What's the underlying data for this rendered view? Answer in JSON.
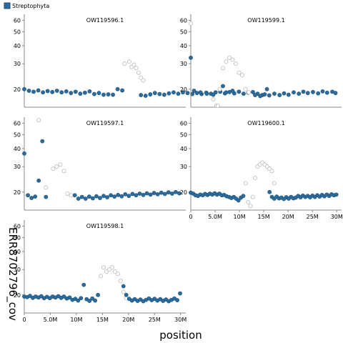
{
  "chart_data": {
    "type": "scatter",
    "title": "",
    "xlabel": "position",
    "ylabel": "ERR8702796_cov",
    "y_scale": "log",
    "grid": false,
    "legend": {
      "position": "top-left",
      "entries": [
        {
          "name": "Streptophyta",
          "color": "#2b6c9e"
        }
      ]
    },
    "colors": {
      "included": "#2b6c9e",
      "included_stroke": "#1d4f77",
      "excluded_stroke": "#bbbbbb"
    },
    "y_ticks": [
      20,
      30,
      40,
      50,
      60
    ],
    "y_tick_labels": [
      "20",
      "30",
      "40",
      "50",
      "60"
    ],
    "ylim": [
      15,
      66
    ],
    "x_ticks": [
      0,
      5000000,
      10000000,
      15000000,
      20000000,
      25000000,
      30000000
    ],
    "x_tick_labels": [
      "0",
      "5.0M",
      "10M",
      "15M",
      "20M",
      "25M",
      "30M"
    ],
    "xlim": [
      0,
      31000000
    ],
    "panels": [
      {
        "name": "OW119596.1",
        "length": 34000000,
        "included": [
          [
            0,
            20
          ],
          [
            1000000,
            19.5
          ],
          [
            2000000,
            19.2
          ],
          [
            3000000,
            19.6
          ],
          [
            4000000,
            19
          ],
          [
            5000000,
            19.4
          ],
          [
            6000000,
            19.1
          ],
          [
            7000000,
            19.5
          ],
          [
            8000000,
            19
          ],
          [
            9000000,
            19.3
          ],
          [
            10000000,
            18.8
          ],
          [
            11000000,
            19.2
          ],
          [
            12000000,
            18.6
          ],
          [
            13000000,
            18.9
          ],
          [
            14000000,
            19.3
          ],
          [
            15000000,
            18.5
          ],
          [
            16000000,
            18.8
          ],
          [
            17000000,
            18.3
          ],
          [
            18000000,
            18.4
          ],
          [
            19000000,
            18.3
          ],
          [
            20000000,
            20
          ],
          [
            21000000,
            19.6
          ],
          [
            25000000,
            18.2
          ],
          [
            26000000,
            18
          ],
          [
            27000000,
            18.4
          ],
          [
            28000000,
            18.8
          ],
          [
            29000000,
            18.5
          ],
          [
            30000000,
            18.3
          ],
          [
            31000000,
            18.7
          ],
          [
            32000000,
            19
          ],
          [
            33000000,
            18.6
          ],
          [
            34000000,
            19
          ],
          [
            35000000,
            18.8
          ],
          [
            36000000,
            18.5
          ],
          [
            37000000,
            18.8
          ],
          [
            38000000,
            18.5
          ],
          [
            39000000,
            18.9
          ],
          [
            40000000,
            18.6
          ],
          [
            41000000,
            19
          ],
          [
            42000000,
            19.2
          ],
          [
            43000000,
            18.7
          ],
          [
            44000000,
            19.1
          ],
          [
            45000000,
            18.7
          ],
          [
            46000000,
            19.2
          ],
          [
            47000000,
            18.6
          ],
          [
            48000000,
            18.9
          ],
          [
            49000000,
            19.1
          ],
          [
            50000000,
            18.6
          ],
          [
            51000000,
            18.2
          ],
          [
            52000000,
            20
          ]
        ],
        "excluded": [
          [
            21500000,
            30
          ],
          [
            22500000,
            31
          ],
          [
            23000000,
            28.5
          ],
          [
            23500000,
            29.5
          ],
          [
            24000000,
            28
          ],
          [
            24500000,
            26
          ],
          [
            25000000,
            24
          ],
          [
            25500000,
            23
          ]
        ]
      },
      {
        "name": "OW119599.1",
        "length": 23000000,
        "included": [
          [
            0,
            33
          ],
          [
            500000,
            19.5
          ],
          [
            1500000,
            19
          ],
          [
            2500000,
            18.6
          ],
          [
            3500000,
            18.3
          ],
          [
            5000000,
            21
          ],
          [
            5500000,
            19
          ],
          [
            6500000,
            19.5
          ],
          [
            10000000,
            18.2
          ],
          [
            10800000,
            17.9
          ],
          [
            11500000,
            18.4
          ],
          [
            12200000,
            18.1
          ],
          [
            13000000,
            18.6
          ],
          [
            13800000,
            18.2
          ],
          [
            14500000,
            18.7
          ],
          [
            15200000,
            18.3
          ],
          [
            16000000,
            19
          ],
          [
            16800000,
            18.6
          ],
          [
            17500000,
            19.2
          ],
          [
            18200000,
            18.8
          ],
          [
            19000000,
            19.1
          ],
          [
            19800000,
            18.7
          ],
          [
            20500000,
            19.3
          ],
          [
            21200000,
            18.9
          ],
          [
            22000000,
            19.2
          ],
          [
            22500000,
            18.8
          ]
        ],
        "excluded": [
          [
            0,
            57
          ],
          [
            3500000,
            17
          ],
          [
            4000000,
            15.2
          ],
          [
            4200000,
            14.5
          ],
          [
            4500000,
            20
          ],
          [
            5000000,
            28
          ],
          [
            5500000,
            31
          ],
          [
            6000000,
            33
          ],
          [
            6500000,
            32
          ],
          [
            7000000,
            30
          ],
          [
            7500000,
            26
          ],
          [
            8000000,
            25
          ],
          [
            8500000,
            20
          ],
          [
            9000000,
            19
          ]
        ]
      },
      {
        "name": "OW119597.1",
        "length": 22000000,
        "included": [
          [
            0,
            37
          ],
          [
            500000,
            19
          ],
          [
            1000000,
            18.2
          ],
          [
            1500000,
            18.6
          ],
          [
            2000000,
            24
          ],
          [
            2500000,
            45
          ],
          [
            3000000,
            18.5
          ],
          [
            7000000,
            19
          ],
          [
            7500000,
            18
          ],
          [
            8000000,
            18.5
          ],
          [
            8500000,
            18
          ],
          [
            9000000,
            18.6
          ],
          [
            9500000,
            18.1
          ],
          [
            10000000,
            18.7
          ],
          [
            10500000,
            18.2
          ],
          [
            11000000,
            18.8
          ],
          [
            11500000,
            18.4
          ],
          [
            12000000,
            19
          ],
          [
            12500000,
            18.6
          ],
          [
            13000000,
            19.1
          ],
          [
            13500000,
            18.7
          ],
          [
            14000000,
            19.3
          ],
          [
            14500000,
            18.8
          ],
          [
            15000000,
            19.4
          ],
          [
            15500000,
            19
          ],
          [
            16000000,
            19.5
          ],
          [
            16500000,
            19.1
          ],
          [
            17000000,
            19.6
          ],
          [
            17500000,
            19.2
          ],
          [
            18000000,
            19.7
          ],
          [
            18500000,
            19.3
          ],
          [
            19000000,
            19.8
          ],
          [
            19500000,
            19.4
          ],
          [
            20000000,
            19.9
          ],
          [
            20500000,
            19.5
          ],
          [
            21000000,
            20
          ],
          [
            21500000,
            19.6
          ]
        ],
        "excluded": [
          [
            2000000,
            63
          ],
          [
            3000000,
            21.5
          ],
          [
            4000000,
            29
          ],
          [
            4500000,
            30
          ],
          [
            5000000,
            31
          ],
          [
            5500000,
            28
          ],
          [
            6000000,
            19.5
          ],
          [
            6500000,
            19
          ]
        ]
      },
      {
        "name": "OW119600.1",
        "length": 31000000,
        "included": [
          [
            0,
            19.8
          ],
          [
            500000,
            19.5
          ],
          [
            1000000,
            19
          ],
          [
            1500000,
            18.8
          ],
          [
            2000000,
            19.2
          ],
          [
            2500000,
            19
          ],
          [
            3000000,
            19.4
          ],
          [
            3500000,
            19.1
          ],
          [
            4000000,
            19.5
          ],
          [
            4500000,
            19.2
          ],
          [
            5000000,
            19.6
          ],
          [
            5500000,
            19.2
          ],
          [
            6000000,
            19.5
          ],
          [
            6500000,
            19
          ],
          [
            7000000,
            19.1
          ],
          [
            7500000,
            18.7
          ],
          [
            8000000,
            18.5
          ],
          [
            8500000,
            18.2
          ],
          [
            9000000,
            18.5
          ],
          [
            9500000,
            18
          ],
          [
            10000000,
            17.5
          ],
          [
            10500000,
            18.3
          ],
          [
            11000000,
            18.8
          ],
          [
            16500000,
            20
          ],
          [
            17000000,
            18.5
          ],
          [
            17500000,
            18
          ],
          [
            18000000,
            18.6
          ],
          [
            18500000,
            18.1
          ],
          [
            19000000,
            18.3
          ],
          [
            19500000,
            17.9
          ],
          [
            20000000,
            18.4
          ],
          [
            20500000,
            18
          ],
          [
            21000000,
            18.5
          ],
          [
            21500000,
            18.1
          ],
          [
            22000000,
            18.3
          ],
          [
            22500000,
            18.8
          ],
          [
            23000000,
            18.4
          ],
          [
            23500000,
            18.9
          ],
          [
            24000000,
            18.5
          ],
          [
            24500000,
            18.8
          ],
          [
            25000000,
            18.4
          ],
          [
            25500000,
            18.9
          ],
          [
            26000000,
            18.5
          ],
          [
            26500000,
            19
          ],
          [
            27000000,
            18.6
          ],
          [
            27500000,
            19.1
          ],
          [
            28000000,
            18.7
          ],
          [
            28500000,
            19.2
          ],
          [
            29000000,
            18.8
          ],
          [
            29500000,
            19.3
          ],
          [
            30000000,
            19
          ],
          [
            30500000,
            19.2
          ]
        ],
        "excluded": [
          [
            11500000,
            23
          ],
          [
            12000000,
            17
          ],
          [
            12500000,
            16
          ],
          [
            13000000,
            18.5
          ],
          [
            13500000,
            25
          ],
          [
            14000000,
            30
          ],
          [
            14500000,
            31
          ],
          [
            15000000,
            32
          ],
          [
            15500000,
            31
          ],
          [
            16000000,
            30
          ],
          [
            16500000,
            29
          ],
          [
            17000000,
            28
          ],
          [
            17500000,
            23
          ]
        ]
      },
      {
        "name": "OW119598.1",
        "length": 28000000,
        "included": [
          [
            0,
            19.5
          ],
          [
            500000,
            19.3
          ],
          [
            1000000,
            19.7
          ],
          [
            1500000,
            19.1
          ],
          [
            2000000,
            19.5
          ],
          [
            2500000,
            19.2
          ],
          [
            3000000,
            19.6
          ],
          [
            3500000,
            19
          ],
          [
            4000000,
            19.4
          ],
          [
            4500000,
            19
          ],
          [
            5000000,
            19.5
          ],
          [
            5500000,
            19.2
          ],
          [
            6000000,
            19.6
          ],
          [
            6500000,
            19.1
          ],
          [
            7000000,
            19.5
          ],
          [
            7500000,
            18.9
          ],
          [
            8000000,
            19.2
          ],
          [
            8500000,
            18.5
          ],
          [
            9000000,
            18.8
          ],
          [
            9500000,
            18.3
          ],
          [
            10000000,
            19
          ],
          [
            10500000,
            23.5
          ],
          [
            11000000,
            18.7
          ],
          [
            11500000,
            18.2
          ],
          [
            12000000,
            18.9
          ],
          [
            12500000,
            18.3
          ],
          [
            13000000,
            20
          ],
          [
            17500000,
            23
          ],
          [
            18000000,
            20
          ],
          [
            18500000,
            18.8
          ],
          [
            19000000,
            18.3
          ],
          [
            19500000,
            18.7
          ],
          [
            20000000,
            18.2
          ],
          [
            20500000,
            18.6
          ],
          [
            21000000,
            18.1
          ],
          [
            21500000,
            18.5
          ],
          [
            22000000,
            18.9
          ],
          [
            22500000,
            18.4
          ],
          [
            23000000,
            18.8
          ],
          [
            23500000,
            18.3
          ],
          [
            24000000,
            18.7
          ],
          [
            24500000,
            18.2
          ],
          [
            25000000,
            18.6
          ],
          [
            25500000,
            18.1
          ],
          [
            26000000,
            18.5
          ],
          [
            26500000,
            18.9
          ],
          [
            27000000,
            18.4
          ],
          [
            27500000,
            20.5
          ]
        ],
        "excluded": [
          [
            13500000,
            27
          ],
          [
            14000000,
            31
          ],
          [
            14500000,
            29
          ],
          [
            15000000,
            30
          ],
          [
            15500000,
            31
          ],
          [
            16000000,
            29
          ],
          [
            16500000,
            28
          ],
          [
            17000000,
            25
          ],
          [
            17500000,
            21
          ],
          [
            18000000,
            19
          ]
        ]
      }
    ]
  }
}
